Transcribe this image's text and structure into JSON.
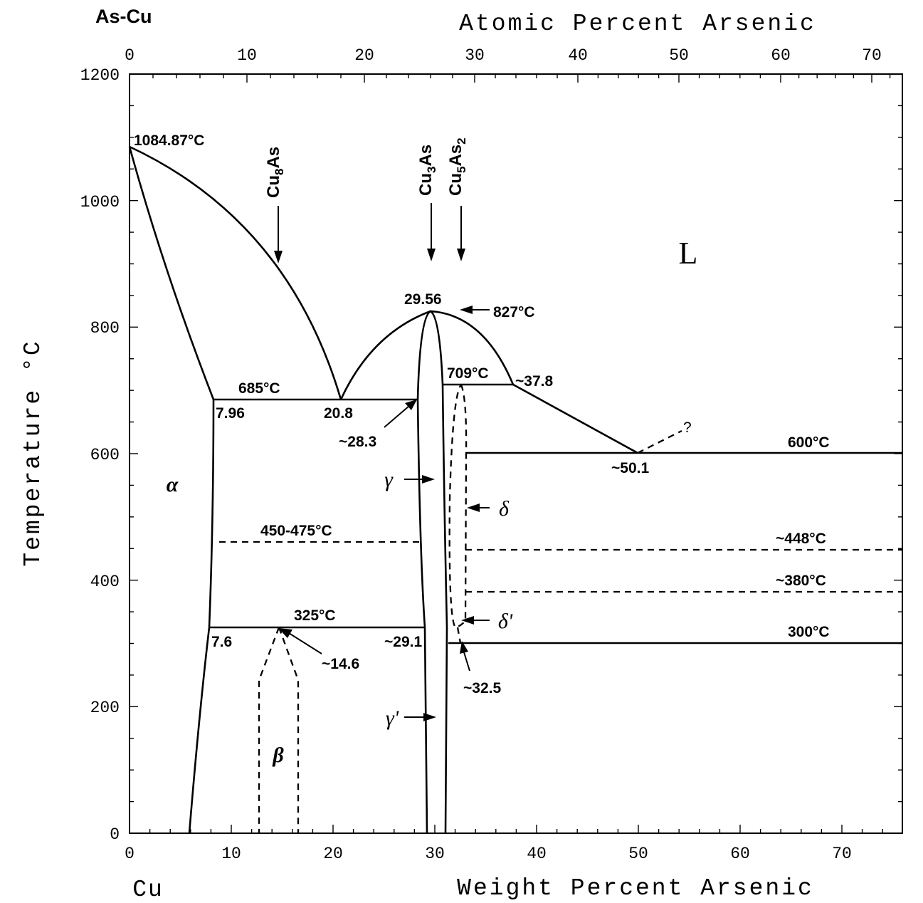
{
  "system_label": "As-Cu",
  "axes": {
    "top_title": "Atomic Percent Arsenic",
    "bottom_title": "Weight Percent Arsenic",
    "left_title": "Temperature °C",
    "element_label": "Cu",
    "y_ticks": [
      "0",
      "200",
      "400",
      "600",
      "800",
      "1000",
      "1200"
    ],
    "bottom_ticks": [
      "0",
      "10",
      "20",
      "30",
      "40",
      "50",
      "60",
      "70"
    ],
    "top_ticks": [
      "0",
      "10",
      "20",
      "30",
      "40",
      "50",
      "60",
      "70"
    ]
  },
  "compounds": {
    "cu8as": {
      "base": "Cu",
      "sub1": "8",
      "mid": "As",
      "sub2": ""
    },
    "cu3as": {
      "base": "Cu",
      "sub1": "3",
      "mid": "As",
      "sub2": ""
    },
    "cu5as2": {
      "base": "Cu",
      "sub1": "5",
      "mid": "As",
      "sub2": "2"
    }
  },
  "phases": {
    "liquid": "L",
    "alpha": "α",
    "beta": "β",
    "gamma": "γ",
    "gamma_prime": "γ'",
    "delta": "δ",
    "delta_prime": "δ'"
  },
  "labels": {
    "cu_melting": "1084.87°C",
    "eutectic_temp_1": "685°C",
    "eutectic_comp_alpha": "7.96",
    "eutectic_comp_1": "20.8",
    "gamma_comp_685": "~28.3",
    "congruent_comp": "29.56",
    "congruent_temp": "827°C",
    "peritectic_temp": "709°C",
    "peritectic_liquid": "~37.8",
    "eutectic_temp_2": "600°C",
    "eutectic_comp_2": "~50.1",
    "question": "?",
    "ordering_temp": "450-475°C",
    "delta_trans_1": "~448°C",
    "delta_trans_2": "~380°C",
    "eutectoid_temp": "325°C",
    "eutectoid_alpha": "7.6",
    "eutectoid_comp": "~14.6",
    "eutectoid_gamma": "~29.1",
    "lower_temp": "300°C",
    "lower_comp": "~32.5"
  },
  "chart_data": {
    "type": "phase-diagram",
    "xlabel": "Weight Percent Arsenic",
    "ylabel": "Temperature °C",
    "x2label": "Atomic Percent Arsenic",
    "xlim": [
      0,
      76
    ],
    "ylim": [
      0,
      1200
    ],
    "key_points": [
      {
        "label": "1084.87°C",
        "wt": 0,
        "t": 1084.87
      },
      {
        "label": "20.8",
        "wt": 20.8,
        "t": 685
      },
      {
        "label": "29.56",
        "wt": 29.56,
        "t": 827
      },
      {
        "label": "~37.8",
        "wt": 37.8,
        "t": 709
      },
      {
        "label": "~50.1",
        "wt": 50.1,
        "t": 600
      },
      {
        "label": "~14.6",
        "wt": 14.6,
        "t": 325
      }
    ],
    "isotherms": [
      {
        "label": "685°C",
        "t": 685
      },
      {
        "label": "709°C",
        "t": 709
      },
      {
        "label": "600°C",
        "t": 600
      },
      {
        "label": "450-475°C",
        "t": 460
      },
      {
        "label": "~448°C",
        "t": 448
      },
      {
        "label": "~380°C",
        "t": 380
      },
      {
        "label": "325°C",
        "t": 325
      },
      {
        "label": "300°C",
        "t": 300
      }
    ]
  }
}
